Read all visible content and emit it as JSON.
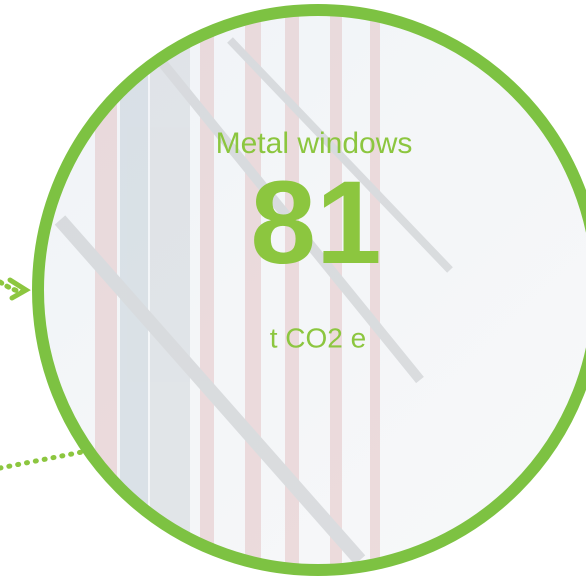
{
  "label": "Metal windows",
  "value": 81,
  "unit": "t CO2 e"
}
